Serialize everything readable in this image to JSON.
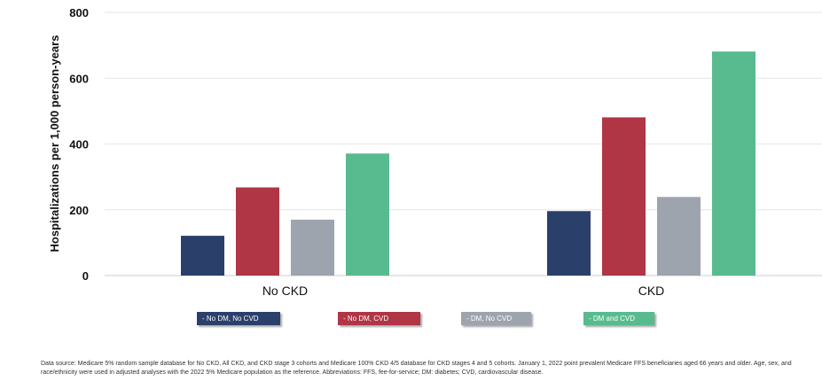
{
  "chart_data": {
    "type": "bar",
    "title": "",
    "xlabel": "",
    "ylabel": "Hospitalizations per 1,000 person-years",
    "ylim": [
      0,
      800
    ],
    "yticks": [
      0,
      200,
      400,
      600,
      800
    ],
    "grid": true,
    "legend_position": "bottom",
    "categories": [
      "No CKD",
      "CKD"
    ],
    "series": [
      {
        "name": "- No DM, No CVD",
        "color": "#2b3f6b",
        "values": [
          121,
          196
        ]
      },
      {
        "name": "- No DM, CVD",
        "color": "#b03545",
        "values": [
          268,
          481
        ]
      },
      {
        "name": "- DM, No CVD",
        "color": "#9ea4ad",
        "values": [
          170,
          239
        ]
      },
      {
        "name": "- DM and CVD",
        "color": "#57bb8f",
        "values": [
          371,
          681
        ]
      }
    ]
  },
  "footnote": "Data source: Medicare 5% random sample database for No CKD, All CKD, and CKD stage 3 cohorts and Medicare 100% CKD 4/5 database for CKD stages 4 and 5 cohorts. January 1, 2022 point prevalent Medicare FFS beneficiaries aged 66 years and older. Age, sex, and race/ethnicity were used in adjusted analyses with the 2022 5% Medicare population as the reference. Abbreviations: FFS, fee-for-service; DM: diabetes; CVD, cardiovascular disease."
}
